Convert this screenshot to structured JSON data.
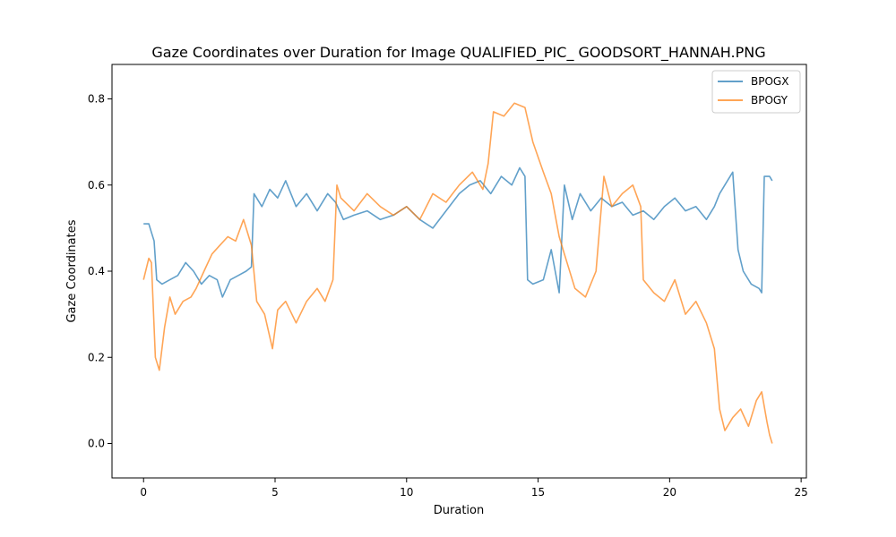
{
  "chart_data": {
    "type": "line",
    "title": "Gaze Coordinates over Duration for Image QUALIFIED_PIC_ GOODSORT_HANNAH.PNG",
    "xlabel": "Duration",
    "ylabel": "Gaze Coordinates",
    "xlim": [
      -1.2,
      25.2
    ],
    "ylim": [
      -0.08,
      0.88
    ],
    "xticks": [
      0,
      5,
      10,
      15,
      20,
      25
    ],
    "yticks": [
      0.0,
      0.2,
      0.4,
      0.6,
      0.8
    ],
    "xtick_labels": [
      "0",
      "5",
      "10",
      "15",
      "20",
      "25"
    ],
    "ytick_labels": [
      "0.0",
      "0.2",
      "0.4",
      "0.6",
      "0.8"
    ],
    "grid": false,
    "legend_position": "top-right",
    "series": [
      {
        "name": "BPOGX",
        "color": "#1f77b4",
        "opacity": 0.7,
        "x": [
          0.0,
          0.2,
          0.3,
          0.4,
          0.5,
          0.7,
          1.0,
          1.3,
          1.6,
          1.9,
          2.2,
          2.5,
          2.8,
          3.0,
          3.3,
          3.6,
          3.9,
          4.1,
          4.2,
          4.5,
          4.8,
          5.1,
          5.4,
          5.8,
          6.2,
          6.6,
          7.0,
          7.3,
          7.6,
          8.0,
          8.5,
          9.0,
          9.5,
          10.0,
          10.5,
          11.0,
          11.5,
          12.0,
          12.4,
          12.8,
          13.2,
          13.6,
          14.0,
          14.3,
          14.5,
          14.6,
          14.8,
          15.2,
          15.5,
          15.8,
          16.0,
          16.3,
          16.6,
          17.0,
          17.4,
          17.8,
          18.2,
          18.6,
          19.0,
          19.4,
          19.8,
          20.2,
          20.6,
          21.0,
          21.4,
          21.7,
          21.9,
          22.2,
          22.4,
          22.6,
          22.8,
          23.1,
          23.4,
          23.5,
          23.6,
          23.8,
          23.9
        ],
        "y": [
          0.51,
          0.51,
          0.49,
          0.47,
          0.38,
          0.37,
          0.38,
          0.39,
          0.42,
          0.4,
          0.37,
          0.39,
          0.38,
          0.34,
          0.38,
          0.39,
          0.4,
          0.41,
          0.58,
          0.55,
          0.59,
          0.57,
          0.61,
          0.55,
          0.58,
          0.54,
          0.58,
          0.56,
          0.52,
          0.53,
          0.54,
          0.52,
          0.53,
          0.55,
          0.52,
          0.5,
          0.54,
          0.58,
          0.6,
          0.61,
          0.58,
          0.62,
          0.6,
          0.64,
          0.62,
          0.38,
          0.37,
          0.38,
          0.45,
          0.35,
          0.6,
          0.52,
          0.58,
          0.54,
          0.57,
          0.55,
          0.56,
          0.53,
          0.54,
          0.52,
          0.55,
          0.57,
          0.54,
          0.55,
          0.52,
          0.55,
          0.58,
          0.61,
          0.63,
          0.45,
          0.4,
          0.37,
          0.36,
          0.35,
          0.62,
          0.62,
          0.61
        ]
      },
      {
        "name": "BPOGY",
        "color": "#ff7f0e",
        "opacity": 0.7,
        "x": [
          0.0,
          0.2,
          0.3,
          0.45,
          0.6,
          0.8,
          1.0,
          1.2,
          1.5,
          1.8,
          2.0,
          2.3,
          2.6,
          2.9,
          3.2,
          3.5,
          3.8,
          4.1,
          4.3,
          4.6,
          4.9,
          5.1,
          5.4,
          5.8,
          6.2,
          6.6,
          6.9,
          7.2,
          7.35,
          7.5,
          8.0,
          8.5,
          9.0,
          9.5,
          10.0,
          10.5,
          11.0,
          11.5,
          12.0,
          12.5,
          12.9,
          13.1,
          13.3,
          13.7,
          14.1,
          14.5,
          14.8,
          15.2,
          15.5,
          15.8,
          16.0,
          16.4,
          16.8,
          17.2,
          17.5,
          17.8,
          18.2,
          18.6,
          18.9,
          19.0,
          19.4,
          19.8,
          20.2,
          20.6,
          21.0,
          21.4,
          21.7,
          21.9,
          22.1,
          22.4,
          22.7,
          23.0,
          23.3,
          23.5,
          23.7,
          23.8,
          23.9
        ],
        "y": [
          0.38,
          0.43,
          0.42,
          0.2,
          0.17,
          0.27,
          0.34,
          0.3,
          0.33,
          0.34,
          0.36,
          0.4,
          0.44,
          0.46,
          0.48,
          0.47,
          0.52,
          0.46,
          0.33,
          0.3,
          0.22,
          0.31,
          0.33,
          0.28,
          0.33,
          0.36,
          0.33,
          0.38,
          0.6,
          0.57,
          0.54,
          0.58,
          0.55,
          0.53,
          0.55,
          0.52,
          0.58,
          0.56,
          0.6,
          0.63,
          0.59,
          0.65,
          0.77,
          0.76,
          0.79,
          0.78,
          0.7,
          0.63,
          0.58,
          0.48,
          0.44,
          0.36,
          0.34,
          0.4,
          0.62,
          0.55,
          0.58,
          0.6,
          0.55,
          0.38,
          0.35,
          0.33,
          0.38,
          0.3,
          0.33,
          0.28,
          0.22,
          0.08,
          0.03,
          0.06,
          0.08,
          0.04,
          0.1,
          0.12,
          0.05,
          0.02,
          0.0
        ]
      }
    ]
  }
}
